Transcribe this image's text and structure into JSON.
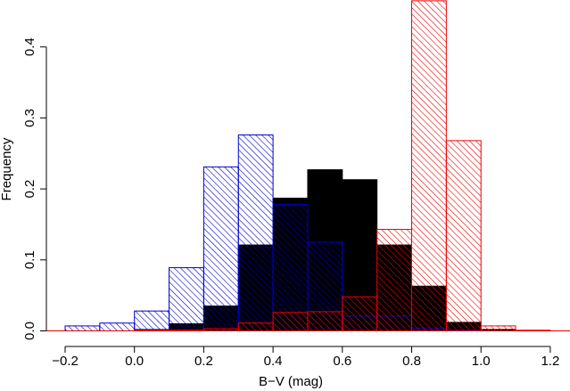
{
  "chart_data": {
    "type": "bar",
    "title": "",
    "xlabel": "B−V (mag)",
    "ylabel": "Frequency",
    "xlim": [
      -0.25,
      1.25
    ],
    "ylim": [
      0,
      0.47
    ],
    "xticks": [
      "−0.2",
      "0.0",
      "0.2",
      "0.4",
      "0.6",
      "0.8",
      "1.0",
      "1.2"
    ],
    "xtick_values": [
      -0.2,
      0.0,
      0.2,
      0.4,
      0.6,
      0.8,
      1.0,
      1.2
    ],
    "yticks": [
      "0.0",
      "0.1",
      "0.2",
      "0.3",
      "0.4"
    ],
    "ytick_values": [
      0.0,
      0.1,
      0.2,
      0.3,
      0.4
    ],
    "bin_width": 0.1,
    "grid": false,
    "legend": "none",
    "series": [
      {
        "color": "#000000",
        "fill": "solid",
        "bins": [
          {
            "x0": 0.0,
            "value": 0.002
          },
          {
            "x0": 0.1,
            "value": 0.01
          },
          {
            "x0": 0.2,
            "value": 0.035
          },
          {
            "x0": 0.3,
            "value": 0.121
          },
          {
            "x0": 0.4,
            "value": 0.187
          },
          {
            "x0": 0.5,
            "value": 0.227
          },
          {
            "x0": 0.6,
            "value": 0.213
          },
          {
            "x0": 0.7,
            "value": 0.121
          },
          {
            "x0": 0.8,
            "value": 0.063
          },
          {
            "x0": 0.9,
            "value": 0.012
          },
          {
            "x0": 1.0,
            "value": 0.002
          }
        ]
      },
      {
        "color": "#0000cc",
        "fill": "hatched",
        "bins": [
          {
            "x0": -0.2,
            "value": 0.007
          },
          {
            "x0": -0.1,
            "value": 0.011
          },
          {
            "x0": 0.0,
            "value": 0.028
          },
          {
            "x0": 0.1,
            "value": 0.089
          },
          {
            "x0": 0.2,
            "value": 0.231
          },
          {
            "x0": 0.3,
            "value": 0.276
          },
          {
            "x0": 0.4,
            "value": 0.178
          },
          {
            "x0": 0.5,
            "value": 0.125
          },
          {
            "x0": 0.6,
            "value": 0.021
          },
          {
            "x0": 0.7,
            "value": 0.021
          },
          {
            "x0": 0.8,
            "value": 0.004
          },
          {
            "x0": 0.9,
            "value": 0.001
          }
        ]
      },
      {
        "color": "#ee0000",
        "fill": "hatched",
        "bins": [
          {
            "x0": 0.0,
            "value": 0.001
          },
          {
            "x0": 0.1,
            "value": 0.001
          },
          {
            "x0": 0.2,
            "value": 0.003
          },
          {
            "x0": 0.3,
            "value": 0.011
          },
          {
            "x0": 0.4,
            "value": 0.026
          },
          {
            "x0": 0.5,
            "value": 0.027
          },
          {
            "x0": 0.6,
            "value": 0.048
          },
          {
            "x0": 0.7,
            "value": 0.143
          },
          {
            "x0": 0.8,
            "value": 0.465
          },
          {
            "x0": 0.9,
            "value": 0.268
          },
          {
            "x0": 1.0,
            "value": 0.007
          },
          {
            "x0": 1.1,
            "value": 0.001
          }
        ]
      }
    ]
  }
}
